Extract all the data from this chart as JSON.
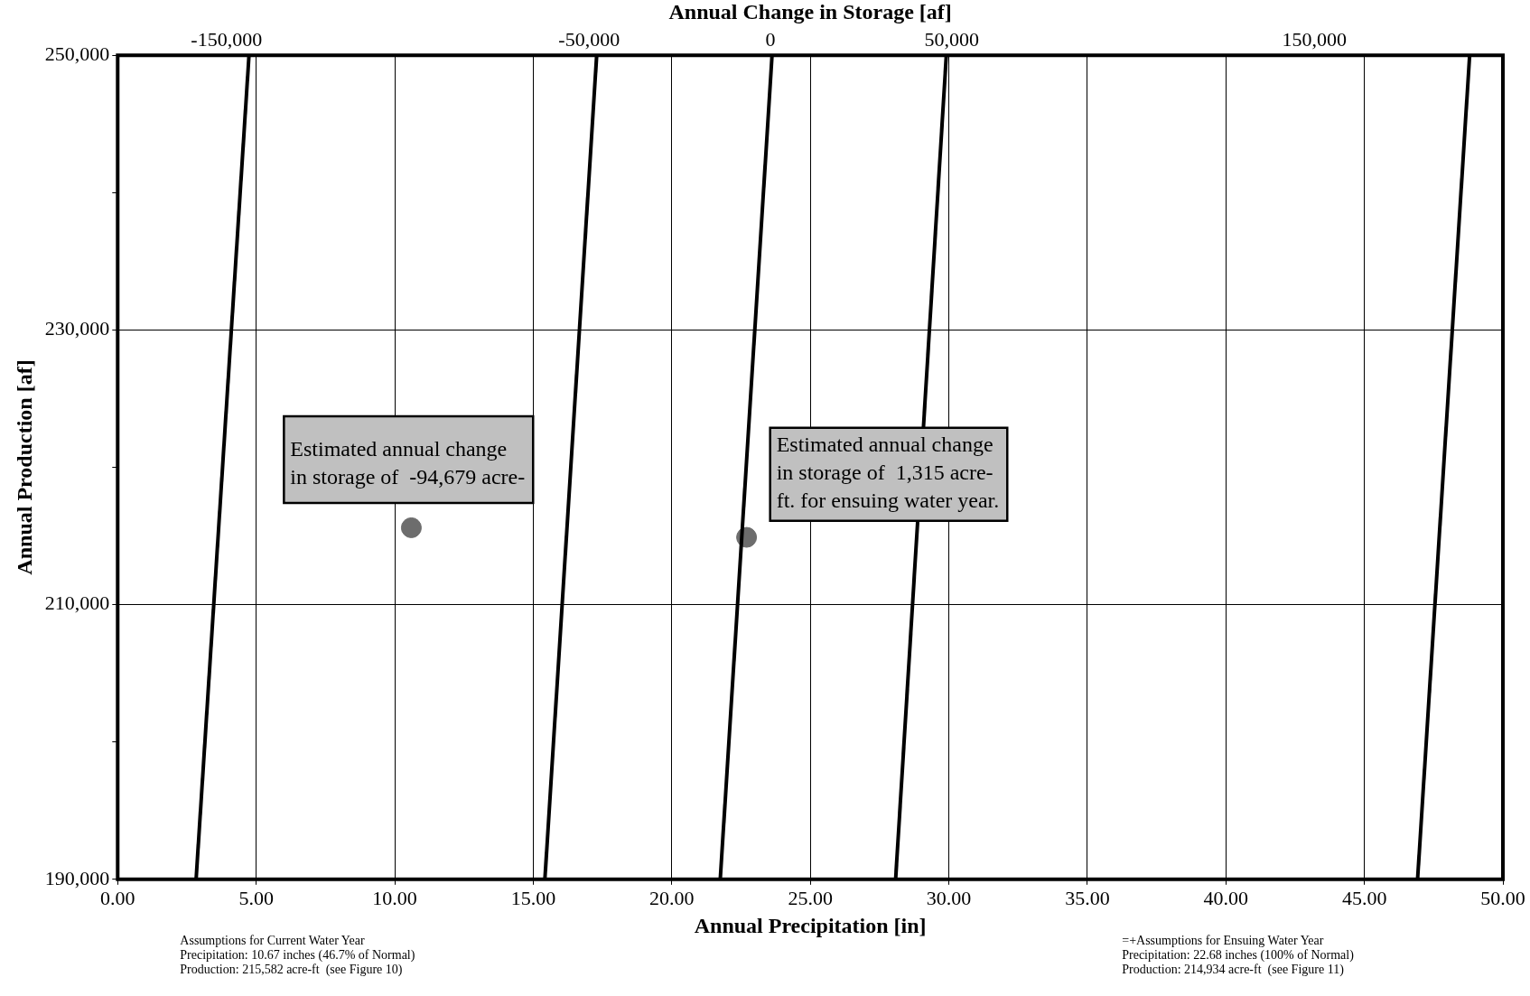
{
  "chart_data": {
    "type": "line",
    "xlabel": "Annual Precipitation [in]",
    "ylabel": "Annual Production [af]",
    "x2label": "Annual Change in Storage [af]",
    "xlim": [
      0,
      50
    ],
    "xticks": [
      {
        "value": 0,
        "label": "0.00"
      },
      {
        "value": 5,
        "label": "5.00"
      },
      {
        "value": 10,
        "label": "10.00"
      },
      {
        "value": 15,
        "label": "15.00"
      },
      {
        "value": 20,
        "label": "20.00"
      },
      {
        "value": 25,
        "label": "25.00"
      },
      {
        "value": 30,
        "label": "30.00"
      },
      {
        "value": 35,
        "label": "35.00"
      },
      {
        "value": 40,
        "label": "40.00"
      },
      {
        "value": 45,
        "label": "45.00"
      },
      {
        "value": 50,
        "label": "50.00"
      }
    ],
    "ylim": [
      190000,
      250000
    ],
    "yticks": [
      {
        "value": 190000,
        "label": "190,000"
      },
      {
        "value": 200000,
        "label": null
      },
      {
        "value": 210000,
        "label": "210,000"
      },
      {
        "value": 220000,
        "label": null
      },
      {
        "value": 230000,
        "label": "230,000"
      },
      {
        "value": 240000,
        "label": null
      },
      {
        "value": 250000,
        "label": "250,000"
      }
    ],
    "x2lim": [
      -180000,
      202000
    ],
    "x2ticks": [
      {
        "value": -150000,
        "label": "-150,000"
      },
      {
        "value": -50000,
        "label": "-50,000"
      },
      0,
      {
        "value": 50000,
        "label": "50,000"
      },
      {
        "value": 150000,
        "label": "150,000"
      }
    ],
    "grid": true,
    "legend": false,
    "marker": "none",
    "line_style": "solid",
    "series": [
      {
        "color": "#000000",
        "x": [
          2.83,
          4.74
        ],
        "values": [
          190000,
          250000
        ]
      },
      {
        "color": "#000000",
        "x": [
          15.42,
          17.29
        ],
        "values": [
          190000,
          250000
        ]
      },
      {
        "color": "#000000",
        "x": [
          21.75,
          23.62
        ],
        "values": [
          190000,
          250000
        ]
      },
      {
        "color": "#000000",
        "x": [
          28.08,
          29.91
        ],
        "values": [
          190000,
          250000
        ]
      },
      {
        "color": "#000000",
        "x": [
          46.92,
          48.8
        ],
        "values": [
          190000,
          250000
        ]
      },
      {
        "type": "scatter",
        "marker": "circle",
        "color": "#6d6d6d",
        "x": [
          10.6,
          22.7
        ],
        "values": [
          215600,
          214900
        ]
      }
    ],
    "annotations": [
      "Estimated annual change\nin storage of  -94,679 acre-",
      "Estimated annual change\nin storage of  1,315 acre-\nft. for ensuing water year.",
      "Assumptions for Current Water Year\nPrecipitation: 10.67 inches (46.7% of Normal)\nProduction: 215,582 acre-ft  (see Figure 10)",
      "=+Assumptions for Ensuing Water Year\nPrecipitation: 22.68 inches (100% of Normal)\nProduction: 214,934 acre-ft  (see Figure 11)"
    ]
  }
}
